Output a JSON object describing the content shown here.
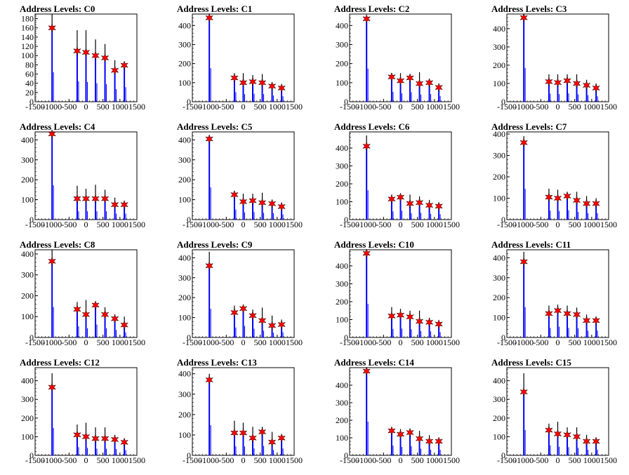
{
  "figure": {
    "colors": {
      "histogram": "#0000ff",
      "peak_marker": "#ff0000",
      "spike": "#000000",
      "axis": "#000000"
    }
  },
  "chart_data": [
    {
      "type": "bar",
      "title": "Address Levels: C0",
      "xlim": [
        -1500,
        1500
      ],
      "ylim": [
        0,
        190
      ],
      "yticks": [
        0,
        20,
        40,
        60,
        80,
        100,
        120,
        140,
        160,
        180
      ],
      "xticks": [
        -1500,
        -1000,
        -500,
        0,
        500,
        1000,
        1500
      ],
      "peaks": {
        "x": [
          -1000,
          -260,
          0,
          280,
          560,
          850,
          1130
        ],
        "y": [
          160,
          110,
          107,
          100,
          95,
          68,
          79
        ]
      },
      "spikes": {
        "x": [
          -1000,
          -260,
          0,
          280,
          560,
          850,
          1130
        ],
        "y": [
          190,
          155,
          155,
          135,
          125,
          90,
          80
        ]
      }
    },
    {
      "type": "bar",
      "title": "Address Levels: C1",
      "xlim": [
        -1500,
        1500
      ],
      "ylim": [
        0,
        460
      ],
      "yticks": [
        0,
        100,
        200,
        300,
        400
      ],
      "xticks": [
        -1500,
        -1000,
        -500,
        0,
        500,
        1000,
        1500
      ],
      "peaks": {
        "x": [
          -1000,
          -260,
          0,
          280,
          560,
          850,
          1130
        ],
        "y": [
          440,
          125,
          100,
          105,
          100,
          82,
          72
        ]
      },
      "spikes": {
        "x": [
          -1000,
          -260,
          0,
          280,
          560,
          850,
          1130
        ],
        "y": [
          440,
          150,
          150,
          140,
          145,
          100,
          75
        ]
      }
    },
    {
      "type": "bar",
      "title": "Address Levels: C2",
      "xlim": [
        -1500,
        1500
      ],
      "ylim": [
        0,
        460
      ],
      "yticks": [
        0,
        100,
        200,
        300,
        400
      ],
      "xticks": [
        -1500,
        -1000,
        -500,
        0,
        500,
        1000,
        1500
      ],
      "peaks": {
        "x": [
          -1000,
          -260,
          0,
          280,
          560,
          850,
          1130
        ],
        "y": [
          435,
          130,
          110,
          125,
          95,
          100,
          75
        ]
      },
      "spikes": {
        "x": [
          -1000,
          -260,
          0,
          280,
          560,
          850,
          1130
        ],
        "y": [
          435,
          150,
          150,
          140,
          155,
          110,
          80
        ]
      }
    },
    {
      "type": "bar",
      "title": "Address Levels: C3",
      "xlim": [
        -1500,
        1500
      ],
      "ylim": [
        0,
        480
      ],
      "yticks": [
        0,
        100,
        200,
        300,
        400
      ],
      "xticks": [
        -1500,
        -1000,
        -500,
        0,
        500,
        1000,
        1500
      ],
      "peaks": {
        "x": [
          -1000,
          -260,
          0,
          280,
          560,
          850,
          1130
        ],
        "y": [
          460,
          110,
          105,
          115,
          100,
          90,
          75
        ]
      },
      "spikes": {
        "x": [
          -1000,
          -260,
          0,
          280,
          560,
          850,
          1130
        ],
        "y": [
          460,
          150,
          150,
          150,
          150,
          120,
          100
        ]
      }
    },
    {
      "type": "bar",
      "title": "Address Levels: C4",
      "xlim": [
        -1500,
        1500
      ],
      "ylim": [
        0,
        440
      ],
      "yticks": [
        0,
        100,
        200,
        300,
        400
      ],
      "xticks": [
        -1500,
        -1000,
        -500,
        0,
        500,
        1000,
        1500
      ],
      "peaks": {
        "x": [
          -1000,
          -260,
          0,
          280,
          560,
          850,
          1130
        ],
        "y": [
          430,
          105,
          105,
          105,
          105,
          75,
          75
        ]
      },
      "spikes": {
        "x": [
          -1000,
          -260,
          0,
          280,
          560,
          850,
          1130
        ],
        "y": [
          430,
          170,
          155,
          175,
          150,
          110,
          85
        ]
      }
    },
    {
      "type": "bar",
      "title": "Address Levels: C5",
      "xlim": [
        -1500,
        1500
      ],
      "ylim": [
        0,
        440
      ],
      "yticks": [
        0,
        100,
        200,
        300,
        400
      ],
      "xticks": [
        -1500,
        -1000,
        -500,
        0,
        500,
        1000,
        1500
      ],
      "peaks": {
        "x": [
          -1000,
          -260,
          0,
          280,
          560,
          850,
          1130
        ],
        "y": [
          405,
          125,
          90,
          95,
          85,
          80,
          65
        ]
      },
      "spikes": {
        "x": [
          -1000,
          -260,
          0,
          280,
          560,
          850,
          1130
        ],
        "y": [
          405,
          130,
          130,
          130,
          135,
          100,
          85
        ]
      }
    },
    {
      "type": "bar",
      "title": "Address Levels: C6",
      "xlim": [
        -1500,
        1500
      ],
      "ylim": [
        0,
        490
      ],
      "yticks": [
        0,
        100,
        200,
        300,
        400
      ],
      "xticks": [
        -1500,
        -1000,
        -500,
        0,
        500,
        1000,
        1500
      ],
      "peaks": {
        "x": [
          -1000,
          -260,
          0,
          280,
          560,
          850,
          1130
        ],
        "y": [
          410,
          115,
          125,
          90,
          95,
          80,
          75
        ]
      },
      "spikes": {
        "x": [
          -1000,
          -260,
          0,
          280,
          560,
          850,
          1130
        ],
        "y": [
          470,
          140,
          140,
          140,
          130,
          110,
          90
        ]
      }
    },
    {
      "type": "bar",
      "title": "Address Levels: C7",
      "xlim": [
        -1500,
        1500
      ],
      "ylim": [
        0,
        410
      ],
      "yticks": [
        0,
        100,
        200,
        300,
        400
      ],
      "xticks": [
        -1500,
        -1000,
        -500,
        0,
        500,
        1000,
        1500
      ],
      "peaks": {
        "x": [
          -1000,
          -260,
          0,
          280,
          560,
          850,
          1130
        ],
        "y": [
          360,
          105,
          100,
          110,
          90,
          75,
          75
        ]
      },
      "spikes": {
        "x": [
          -1000,
          -260,
          0,
          280,
          560,
          850,
          1130
        ],
        "y": [
          390,
          145,
          140,
          130,
          130,
          110,
          100
        ]
      }
    },
    {
      "type": "bar",
      "title": "Address Levels: C8",
      "xlim": [
        -1500,
        1500
      ],
      "ylim": [
        0,
        420
      ],
      "yticks": [
        0,
        100,
        200,
        300,
        400
      ],
      "xticks": [
        -1500,
        -1000,
        -500,
        0,
        500,
        1000,
        1500
      ],
      "peaks": {
        "x": [
          -1000,
          -260,
          0,
          280,
          560,
          850,
          1130
        ],
        "y": [
          365,
          135,
          110,
          155,
          110,
          90,
          60
        ]
      },
      "spikes": {
        "x": [
          -1000,
          -260,
          0,
          280,
          560,
          850,
          1130
        ],
        "y": [
          420,
          170,
          180,
          160,
          145,
          110,
          100
        ]
      }
    },
    {
      "type": "bar",
      "title": "Address Levels: C9",
      "xlim": [
        -1500,
        1500
      ],
      "ylim": [
        0,
        440
      ],
      "yticks": [
        0,
        100,
        200,
        300,
        400
      ],
      "xticks": [
        -1500,
        -1000,
        -500,
        0,
        500,
        1000,
        1500
      ],
      "peaks": {
        "x": [
          -1000,
          -260,
          0,
          280,
          560,
          850,
          1130
        ],
        "y": [
          360,
          125,
          145,
          110,
          85,
          60,
          65
        ]
      },
      "spikes": {
        "x": [
          -1000,
          -260,
          0,
          280,
          560,
          850,
          1130
        ],
        "y": [
          430,
          160,
          150,
          140,
          150,
          110,
          90
        ]
      }
    },
    {
      "type": "bar",
      "title": "Address Levels: C10",
      "xlim": [
        -1500,
        1500
      ],
      "ylim": [
        0,
        490
      ],
      "yticks": [
        0,
        100,
        200,
        300,
        400
      ],
      "xticks": [
        -1500,
        -1000,
        -500,
        0,
        500,
        1000,
        1500
      ],
      "peaks": {
        "x": [
          -1000,
          -260,
          0,
          280,
          560,
          850,
          1130
        ],
        "y": [
          470,
          120,
          125,
          115,
          90,
          85,
          75
        ]
      },
      "spikes": {
        "x": [
          -1000,
          -260,
          0,
          280,
          560,
          850,
          1130
        ],
        "y": [
          470,
          170,
          160,
          150,
          150,
          110,
          90
        ]
      }
    },
    {
      "type": "bar",
      "title": "Address Levels: C11",
      "xlim": [
        -1500,
        1500
      ],
      "ylim": [
        0,
        440
      ],
      "yticks": [
        0,
        100,
        200,
        300,
        400
      ],
      "xticks": [
        -1500,
        -1000,
        -500,
        0,
        500,
        1000,
        1500
      ],
      "peaks": {
        "x": [
          -1000,
          -260,
          0,
          280,
          560,
          850,
          1130
        ],
        "y": [
          380,
          120,
          135,
          120,
          115,
          85,
          85
        ]
      },
      "spikes": {
        "x": [
          -1000,
          -260,
          0,
          280,
          560,
          850,
          1130
        ],
        "y": [
          430,
          160,
          165,
          160,
          150,
          115,
          100
        ]
      }
    },
    {
      "type": "bar",
      "title": "Address Levels: C12",
      "xlim": [
        -1500,
        1500
      ],
      "ylim": [
        0,
        470
      ],
      "yticks": [
        0,
        100,
        200,
        300,
        400
      ],
      "xticks": [
        -1500,
        -1000,
        -500,
        0,
        500,
        1000,
        1500
      ],
      "peaks": {
        "x": [
          -1000,
          -260,
          0,
          280,
          560,
          850,
          1130
        ],
        "y": [
          365,
          110,
          100,
          90,
          90,
          85,
          70
        ]
      },
      "spikes": {
        "x": [
          -1000,
          -260,
          0,
          280,
          560,
          850,
          1130
        ],
        "y": [
          440,
          165,
          175,
          150,
          150,
          110,
          90
        ]
      }
    },
    {
      "type": "bar",
      "title": "Address Levels: C13",
      "xlim": [
        -1500,
        1500
      ],
      "ylim": [
        0,
        430
      ],
      "yticks": [
        0,
        100,
        200,
        300,
        400
      ],
      "xticks": [
        -1500,
        -1000,
        -500,
        0,
        500,
        1000,
        1500
      ],
      "peaks": {
        "x": [
          -1000,
          -260,
          0,
          280,
          560,
          850,
          1130
        ],
        "y": [
          370,
          110,
          110,
          85,
          115,
          65,
          85
        ]
      },
      "spikes": {
        "x": [
          -1000,
          -260,
          0,
          280,
          560,
          850,
          1130
        ],
        "y": [
          400,
          170,
          160,
          140,
          140,
          115,
          95
        ]
      }
    },
    {
      "type": "bar",
      "title": "Address Levels: C14",
      "xlim": [
        -1500,
        1500
      ],
      "ylim": [
        0,
        500
      ],
      "yticks": [
        0,
        100,
        200,
        300,
        400
      ],
      "xticks": [
        -1500,
        -1000,
        -500,
        0,
        500,
        1000,
        1500
      ],
      "peaks": {
        "x": [
          -1000,
          -260,
          0,
          280,
          560,
          850,
          1130
        ],
        "y": [
          480,
          140,
          120,
          130,
          95,
          80,
          80
        ]
      },
      "spikes": {
        "x": [
          -1000,
          -260,
          0,
          280,
          560,
          850,
          1130
        ],
        "y": [
          480,
          150,
          150,
          140,
          140,
          115,
          95
        ]
      }
    },
    {
      "type": "bar",
      "title": "Address Levels: C15",
      "xlim": [
        -1500,
        1500
      ],
      "ylim": [
        0,
        470
      ],
      "yticks": [
        0,
        100,
        200,
        300,
        400
      ],
      "xticks": [
        -1500,
        -1000,
        -500,
        0,
        500,
        1000,
        1500
      ],
      "peaks": {
        "x": [
          -1000,
          -260,
          0,
          280,
          560,
          850,
          1130
        ],
        "y": [
          340,
          135,
          115,
          110,
          100,
          75,
          75
        ]
      },
      "spikes": {
        "x": [
          -1000,
          -260,
          0,
          280,
          560,
          850,
          1130
        ],
        "y": [
          440,
          170,
          180,
          150,
          150,
          110,
          95
        ]
      }
    }
  ]
}
